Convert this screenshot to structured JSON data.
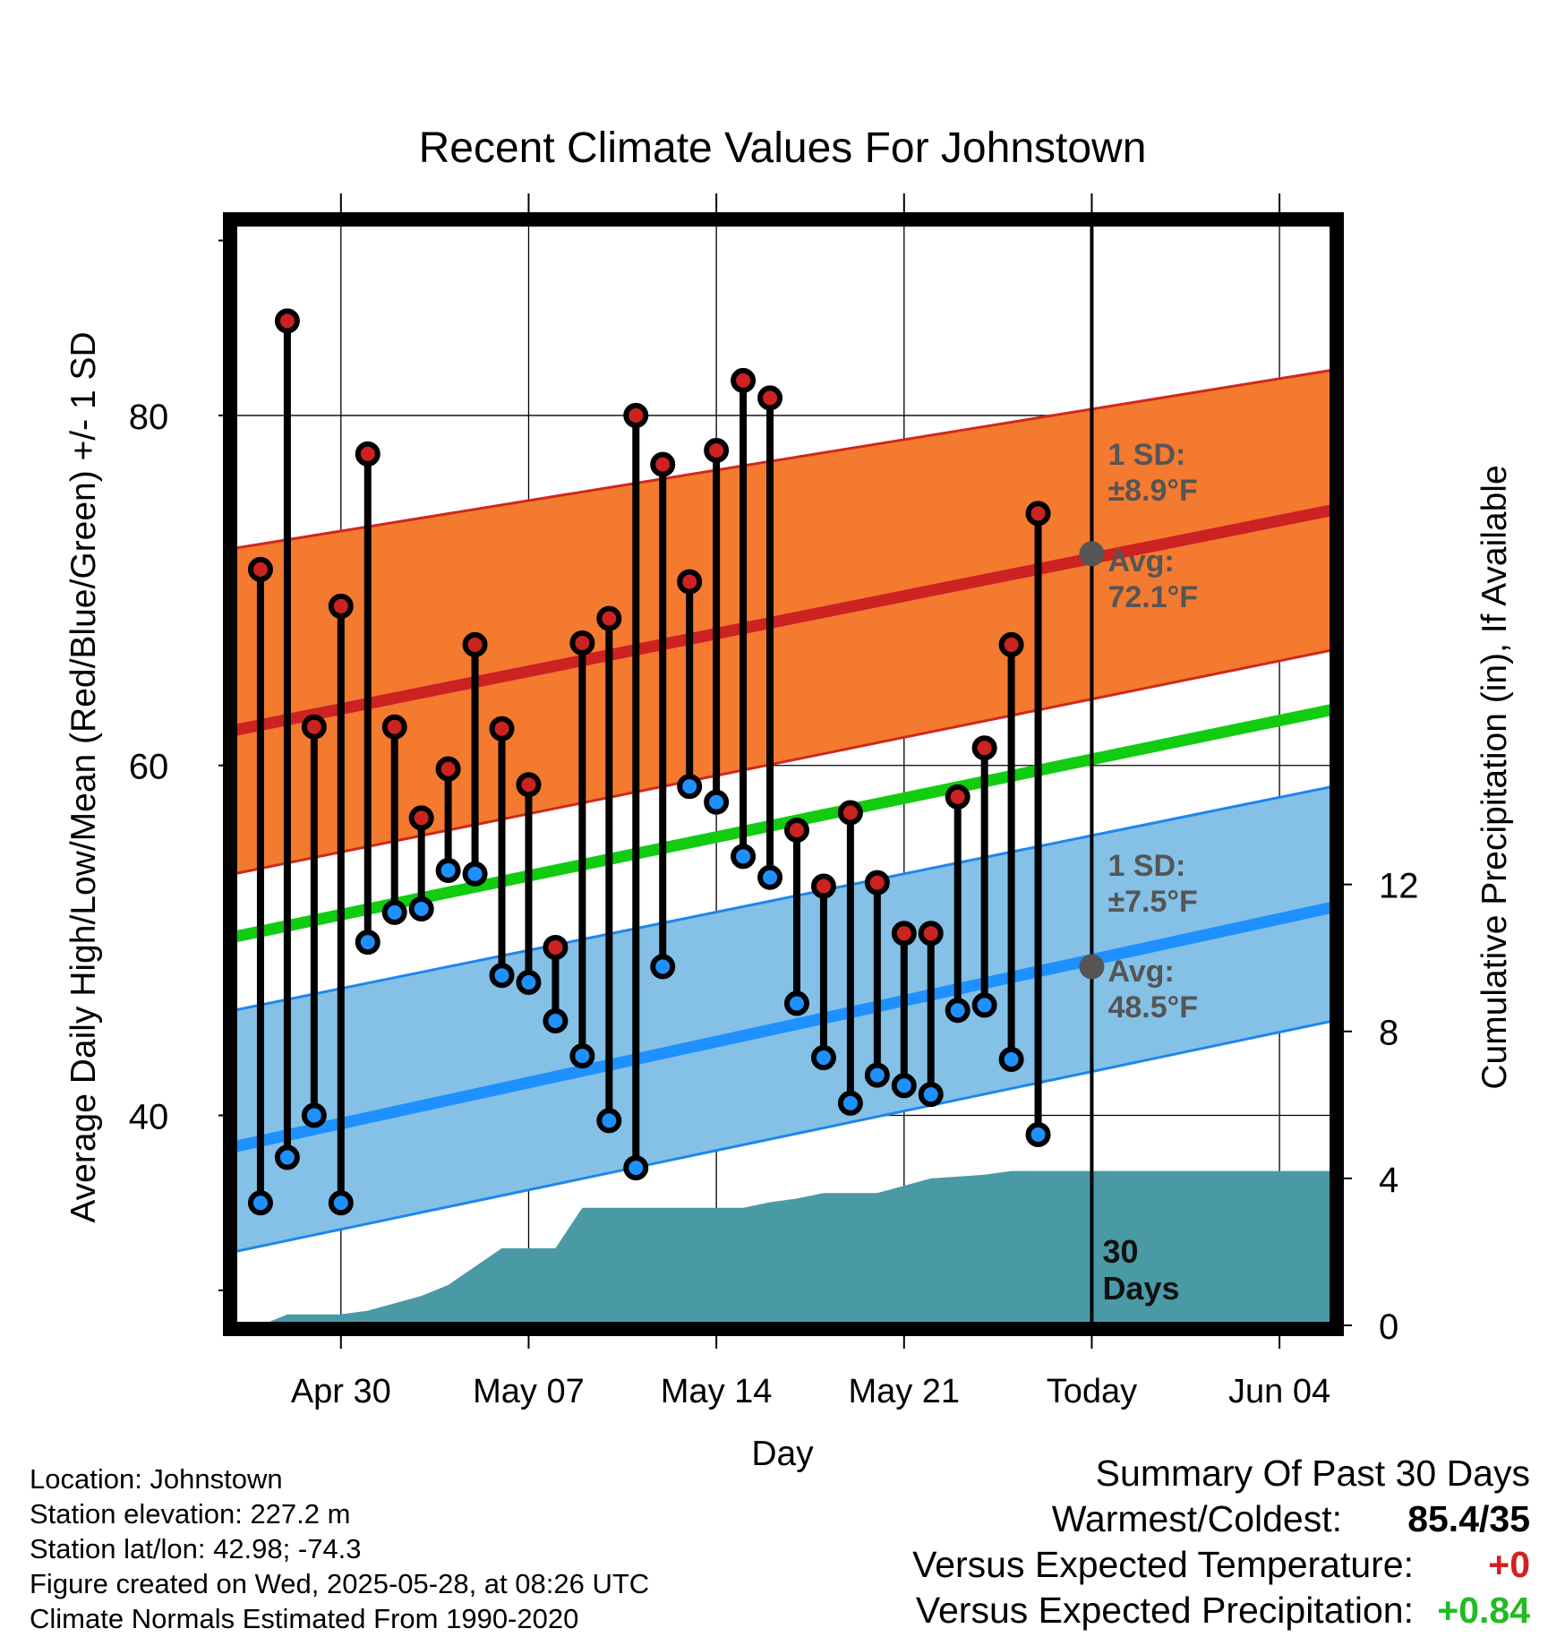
{
  "chart_data": {
    "type": "line",
    "title": "Recent Climate Values For Johnstown",
    "xlabel": "Day",
    "ylabel": "Average Daily High/Low/Mean (Red/Blue/Green) +/- 1 SD",
    "y2label": "Cumulative Precipitation (in), If Available",
    "ylim": [
      28,
      91
    ],
    "y2lim": [
      0,
      30
    ],
    "yticks": [
      "40",
      "60",
      "80"
    ],
    "y2ticks": [
      "0",
      "4",
      "8",
      "12"
    ],
    "xlim": [
      "Apr 26",
      "Jun 06"
    ],
    "xticks": [
      {
        "date": "Apr 30",
        "label": "Apr 30"
      },
      {
        "date": "May 07",
        "label": "May 07"
      },
      {
        "date": "May 14",
        "label": "May 14"
      },
      {
        "date": "May 21",
        "label": "May 21"
      },
      {
        "date": "May 28",
        "label": "Today"
      },
      {
        "date": "Jun 04",
        "label": "Jun 04"
      }
    ],
    "grid": true,
    "today_label": "30\nDays",
    "normals": {
      "high_avg": {
        "start": 62.0,
        "end": 74.6,
        "color": "#cc2222"
      },
      "high_sd_band": {
        "lower_start": 53.8,
        "lower_end": 66.6,
        "upper_start": 72.4,
        "upper_end": 82.6,
        "color": "#f47a30"
      },
      "mean_avg": {
        "start": 50.2,
        "end": 63.2,
        "color": "#11cc11"
      },
      "low_avg": {
        "start": 38.2,
        "end": 51.9,
        "color": "#1e90ff"
      },
      "low_sd_band": {
        "lower_start": 32.2,
        "lower_end": 45.4,
        "upper_start": 46.0,
        "upper_end": 58.8,
        "color": "#85c1e6"
      }
    },
    "annotations": {
      "high_sd": {
        "line1": "1 SD:",
        "line2": "±8.9°F"
      },
      "high_avg": {
        "line1": "Avg:",
        "line2": "72.1°F",
        "value": 72.1
      },
      "low_sd": {
        "line1": "1 SD:",
        "line2": "±7.5°F"
      },
      "low_avg": {
        "line1": "Avg:",
        "line2": "48.5°F",
        "value": 48.5
      }
    },
    "days": [
      "Apr 27",
      "Apr 28",
      "Apr 29",
      "Apr 30",
      "May 01",
      "May 02",
      "May 03",
      "May 04",
      "May 05",
      "May 06",
      "May 07",
      "May 08",
      "May 09",
      "May 10",
      "May 11",
      "May 12",
      "May 13",
      "May 14",
      "May 15",
      "May 16",
      "May 17",
      "May 18",
      "May 19",
      "May 20",
      "May 21",
      "May 22",
      "May 23",
      "May 24",
      "May 25",
      "May 26",
      "May 27"
    ],
    "series": [
      {
        "name": "High",
        "color": "#cc2222",
        "values": [
          71.2,
          85.4,
          62.2,
          69.1,
          77.8,
          62.2,
          57.0,
          59.8,
          66.9,
          62.1,
          58.9,
          49.6,
          67.0,
          68.4,
          80.0,
          77.2,
          70.5,
          78.0,
          82.0,
          81.0,
          56.3,
          53.1,
          57.3,
          53.3,
          50.4,
          50.4,
          58.2,
          61.0,
          66.9,
          74.4,
          null
        ]
      },
      {
        "name": "Low",
        "color": "#1e90ff",
        "values": [
          35.0,
          37.6,
          40.0,
          35.0,
          49.9,
          51.6,
          51.8,
          54.0,
          53.8,
          48.0,
          47.6,
          45.4,
          43.4,
          39.7,
          37.0,
          48.5,
          58.8,
          57.9,
          54.8,
          53.6,
          46.4,
          43.3,
          40.7,
          42.3,
          41.7,
          41.2,
          46.0,
          46.3,
          43.2,
          38.9,
          null
        ]
      },
      {
        "name": "Cumulative Precipitation",
        "color": "#4a9aa6",
        "values": [
          0.0,
          0.3,
          0.3,
          0.3,
          0.4,
          0.6,
          0.8,
          1.1,
          1.6,
          2.1,
          2.1,
          2.1,
          3.2,
          3.2,
          3.2,
          3.2,
          3.2,
          3.2,
          3.2,
          3.35,
          3.45,
          3.6,
          3.6,
          3.6,
          3.8,
          4.0,
          4.05,
          4.1,
          4.2,
          4.2,
          4.2
        ]
      }
    ]
  },
  "info": {
    "location": "Location: Johnstown",
    "elevation": "Station elevation: 227.2 m",
    "latlon": "Station lat/lon: 42.98; -74.3",
    "created": "Figure created on Wed, 2025-05-28, at 08:26 UTC",
    "normals": "Climate Normals Estimated From 1990-2020"
  },
  "summary": {
    "title": "Summary Of Past 30 Days",
    "warmest_label": "Warmest/Coldest:",
    "warmest_value": "85.4/35",
    "temp_label": "Versus Expected Temperature:",
    "temp_value": "+0",
    "temp_color": "#d42020",
    "precip_label": "Versus Expected Precipitation:",
    "precip_value": "+0.84",
    "precip_color": "#22bb22"
  }
}
